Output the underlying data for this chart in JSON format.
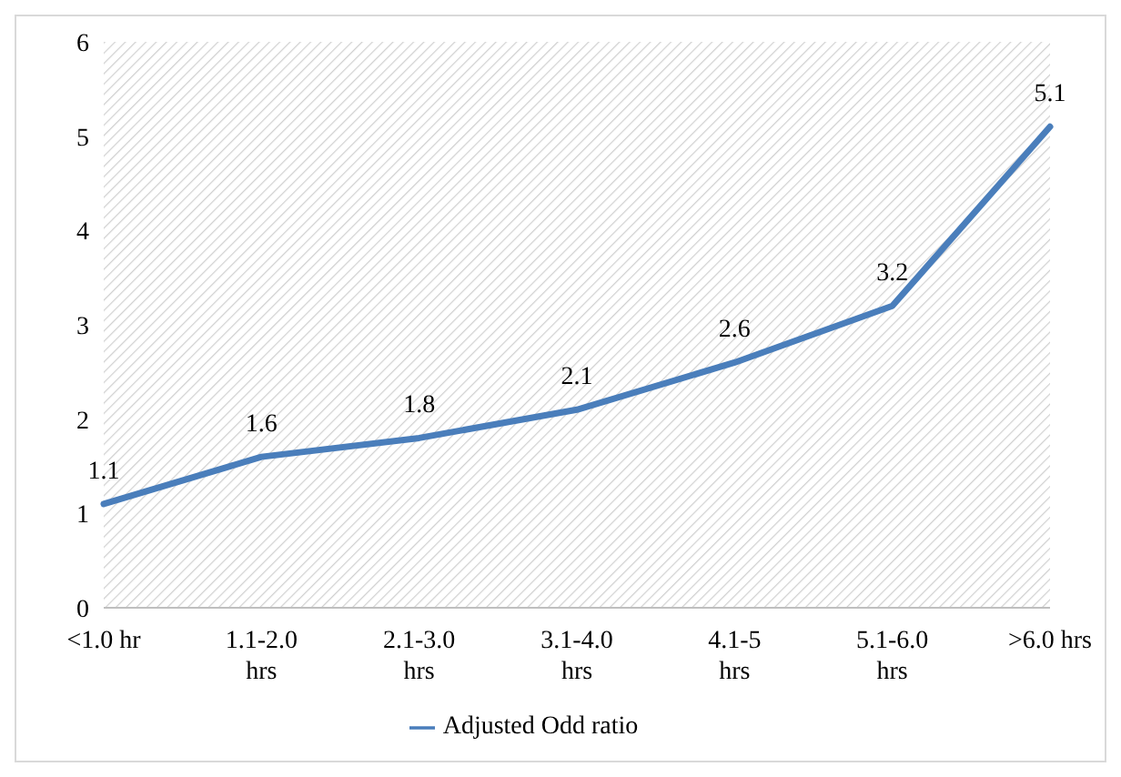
{
  "chart_data": {
    "type": "line",
    "categories": [
      "<1.0 hr",
      "1.1-2.0 hrs",
      "2.1-3.0 hrs",
      "3.1-4.0 hrs",
      "4.1-5 hrs",
      "5.1-6.0 hrs",
      ">6.0 hrs"
    ],
    "series": [
      {
        "name": "Adjusted Odd ratio",
        "color": "#4a7ebb",
        "values": [
          1.1,
          1.6,
          1.8,
          2.1,
          2.6,
          3.2,
          5.1
        ]
      }
    ],
    "ylim": [
      0,
      6
    ],
    "yticks": [
      0,
      1,
      2,
      3,
      4,
      5,
      6
    ],
    "grid": false,
    "legend": "bottom",
    "data_labels": true,
    "marker": "none",
    "line_style": "solid"
  }
}
